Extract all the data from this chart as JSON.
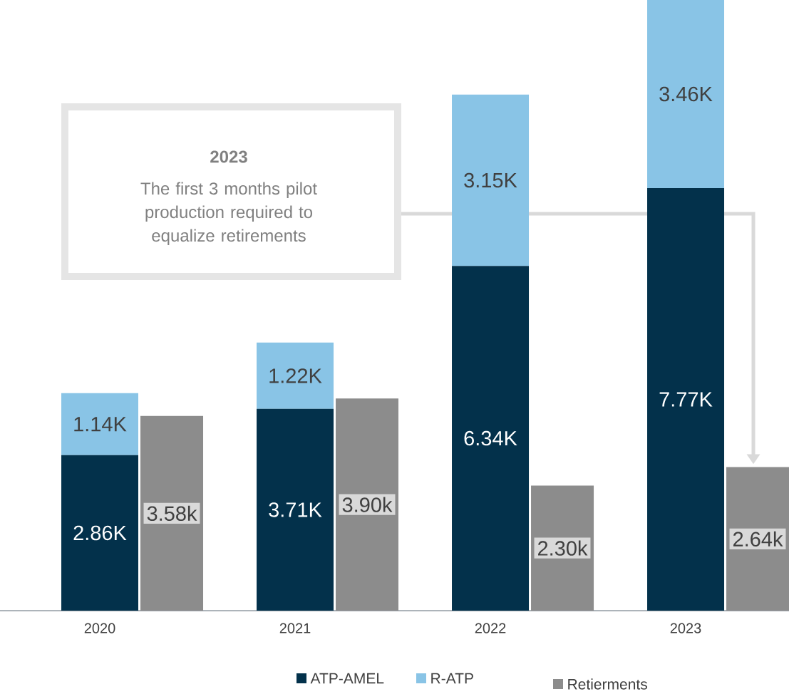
{
  "chart_data": {
    "type": "bar",
    "stacked": true,
    "categories": [
      "2020",
      "2021",
      "2022",
      "2023"
    ],
    "series": [
      {
        "name": "ATP-AMEL",
        "color": "#03314b",
        "values": [
          2.86,
          3.71,
          6.34,
          7.77
        ],
        "value_labels": [
          "2.86K",
          "3.71K",
          "6.34K",
          "7.77K"
        ]
      },
      {
        "name": "R-ATP",
        "color": "#89c4e6",
        "values": [
          1.14,
          1.22,
          3.15,
          3.46
        ],
        "value_labels": [
          "1.14K",
          "1.22K",
          "3.15K",
          "3.46K"
        ]
      },
      {
        "name": "Retierments",
        "color": "#8c8c8c",
        "values": [
          3.58,
          3.9,
          2.3,
          2.64
        ],
        "value_labels": [
          "3.58k",
          "3.90k",
          "2.30k",
          "2.64k"
        ],
        "axis": "y2"
      }
    ],
    "tick_labels": "x",
    "legend": "bottom",
    "annotations": [
      "2023",
      "The first 3 months pilot production required to equalize retirements"
    ]
  }
}
